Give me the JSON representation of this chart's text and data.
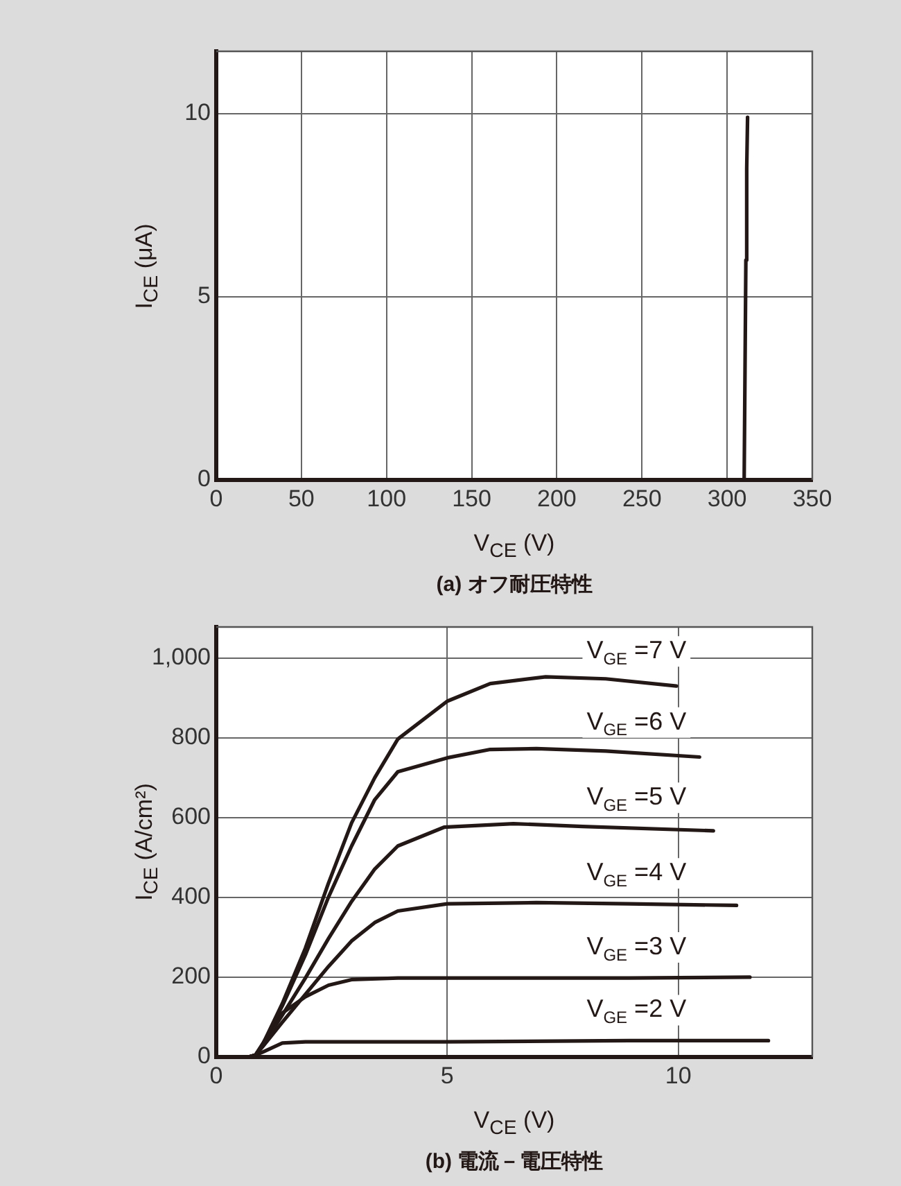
{
  "chart_data": [
    {
      "type": "line",
      "title": "(a) オフ耐圧特性",
      "xlabel": "V$_{CE}$ (V)",
      "ylabel": "I$_{CE}$ (μA)",
      "marker": "none",
      "line_style": "solid",
      "grid": true,
      "xlim": [
        0,
        350
      ],
      "xticks": [
        0,
        50,
        100,
        150,
        200,
        250,
        300,
        350
      ],
      "ylim": [
        0,
        11.7
      ],
      "yticks": [
        0,
        5,
        10
      ],
      "series": [
        {
          "color": "#231815",
          "x": [
            310,
            310.5,
            311,
            311.5,
            312
          ],
          "values": [
            0,
            3,
            6,
            8.5,
            9.9
          ]
        }
      ]
    },
    {
      "type": "line",
      "title": "(b) 電流－電圧特性",
      "xlabel": "V$_{CE}$ (V)",
      "ylabel": "I$_{CE}$ (A/cm²)",
      "marker": "none",
      "line_style": "solid",
      "grid": true,
      "xlim": [
        0,
        12.9
      ],
      "xticks": [
        0,
        5,
        10
      ],
      "ylim": [
        0,
        1078
      ],
      "yticks": [
        0,
        200,
        400,
        600,
        800,
        {
          "value": 1000,
          "label": "1,000"
        }
      ],
      "series": [
        {
          "name": "V$_{GE}$ =7 V",
          "color": "#231815",
          "x": [
            0,
            0.7,
            0.85,
            1.0,
            1.43,
            1.93,
            2.43,
            2.93,
            3.43,
            3.93,
            5.0,
            5.93,
            7.13,
            8.43,
            9.96
          ],
          "values": [
            0,
            0,
            5,
            30,
            134,
            273,
            436,
            587,
            700,
            797,
            892,
            936,
            953,
            948,
            930
          ]
        },
        {
          "name": "V$_{GE}$ =6 V",
          "color": "#231815",
          "x": [
            0,
            0.7,
            0.85,
            1.0,
            1.43,
            1.93,
            2.43,
            2.93,
            3.43,
            3.93,
            5.0,
            5.93,
            6.93,
            8.43,
            10.46
          ],
          "values": [
            0,
            0,
            5,
            30,
            128,
            256,
            401,
            529,
            645,
            715,
            750,
            771,
            773,
            767,
            752
          ]
        },
        {
          "name": "V$_{GE}$ =5 V",
          "color": "#231815",
          "x": [
            0,
            0.7,
            0.85,
            1.0,
            1.43,
            1.93,
            2.43,
            2.93,
            3.43,
            3.93,
            4.93,
            6.43,
            7.93,
            10.76
          ],
          "values": [
            0,
            0,
            5,
            28,
            105,
            198,
            297,
            390,
            471,
            529,
            576,
            585,
            578,
            567
          ]
        },
        {
          "name": "V$_{GE}$ =4 V",
          "color": "#231815",
          "x": [
            0,
            0.7,
            0.85,
            1.0,
            1.43,
            1.93,
            2.43,
            2.93,
            3.43,
            3.93,
            5.0,
            6.93,
            8.93,
            11.26
          ],
          "values": [
            0,
            0,
            5,
            25,
            87,
            157,
            227,
            291,
            337,
            366,
            384,
            387,
            384,
            380
          ]
        },
        {
          "name": "V$_{GE}$ =3 V",
          "color": "#231815",
          "x": [
            0,
            0.7,
            0.85,
            0.93,
            1.43,
            1.93,
            2.43,
            2.93,
            3.93,
            5.93,
            8.93,
            11.55
          ],
          "values": [
            0,
            0,
            5,
            20,
            110,
            151,
            180,
            194,
            198,
            198,
            198,
            200
          ]
        },
        {
          "name": "V$_{GE}$ =2 V",
          "color": "#231815",
          "x": [
            0,
            0.7,
            0.85,
            1.0,
            1.43,
            1.93,
            4.93,
            8.93,
            11.95
          ],
          "values": [
            0,
            0,
            5,
            12,
            35,
            38,
            38,
            41,
            41
          ]
        }
      ]
    }
  ]
}
